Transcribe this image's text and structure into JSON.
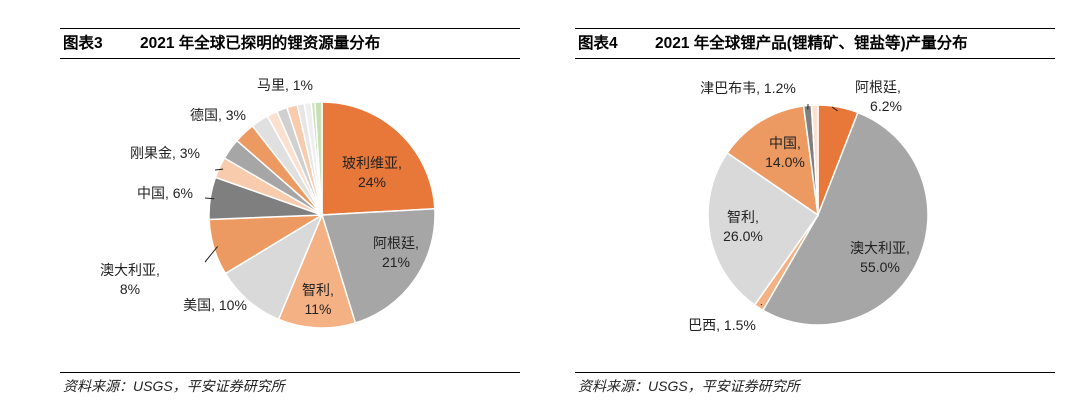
{
  "chart_data": [
    {
      "type": "pie",
      "figure_no": "图表3",
      "title": "2021 年全球已探明的锂资源量分布",
      "source": "资料来源：USGS，平安证券研究所",
      "slices": [
        {
          "label": "玻利维亚, 24%",
          "value": 24,
          "color": "#E8773A"
        },
        {
          "label": "阿根廷, 21%",
          "value": 21,
          "color": "#A6A6A6"
        },
        {
          "label": "智利, 11%",
          "value": 11,
          "color": "#F4B183"
        },
        {
          "label": "美国, 10%",
          "value": 10,
          "color": "#D9D9D9"
        },
        {
          "label": "澳大利亚, 8%",
          "value": 8,
          "color": "#ED9A62"
        },
        {
          "label": "中国, 6%",
          "value": 6,
          "color": "#7F7F7F"
        },
        {
          "label": "刚果金, 3%",
          "value": 3,
          "color": "#F8CBAD"
        },
        {
          "label": "德国, 3%",
          "value": 3,
          "color": "#A6A6A6"
        },
        {
          "label": "",
          "value": 3,
          "color": "#ED9A62"
        },
        {
          "label": "",
          "value": 2.5,
          "color": "#E0E0E0"
        },
        {
          "label": "",
          "value": 1.5,
          "color": "#FBE0D0"
        },
        {
          "label": "",
          "value": 1.5,
          "color": "#D0D0D0"
        },
        {
          "label": "",
          "value": 1.5,
          "color": "#F8CBAD"
        },
        {
          "label": "",
          "value": 1,
          "color": "#E6E6E6"
        },
        {
          "label": "",
          "value": 1,
          "color": "#EFEFEF"
        },
        {
          "label": "",
          "value": 0.5,
          "color": "#C5E0B4"
        },
        {
          "label": "马里, 1%",
          "value": 1,
          "color": "#C5E0B4"
        }
      ]
    },
    {
      "type": "pie",
      "figure_no": "图表4",
      "title": "2021 年全球锂产品(锂精矿、锂盐等)产量分布",
      "source": "资料来源：USGS，平安证券研究所",
      "slices": [
        {
          "label": "阿根廷, 6.2%",
          "value": 6.2,
          "color": "#E8773A"
        },
        {
          "label": "澳大利亚, 55.0%",
          "value": 55.0,
          "color": "#A6A6A6"
        },
        {
          "label": "巴西, 1.5%",
          "value": 1.5,
          "color": "#F4B183"
        },
        {
          "label": "智利, 26.0%",
          "value": 26.0,
          "color": "#D9D9D9"
        },
        {
          "label": "中国, 14.0%",
          "value": 14.0,
          "color": "#ED9A62"
        },
        {
          "label": "津巴布韦, 1.2%",
          "value": 1.2,
          "color": "#7F7F7F"
        },
        {
          "label": "",
          "value": 1.0,
          "color": "#FBE0D0"
        }
      ]
    }
  ]
}
